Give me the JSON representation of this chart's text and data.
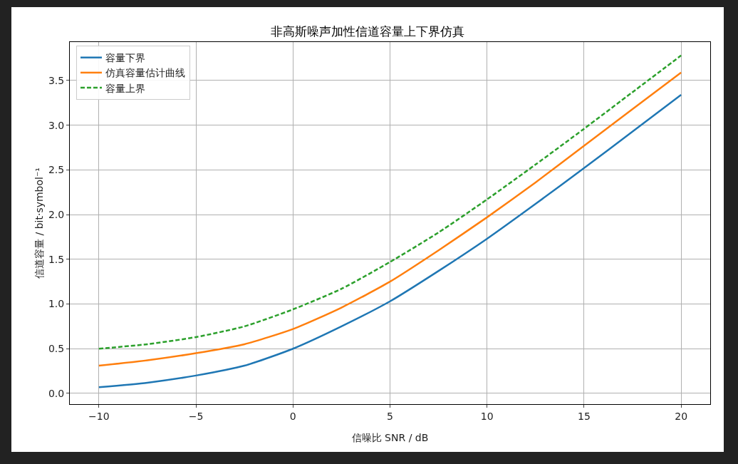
{
  "chart_data": {
    "type": "line",
    "title": "非高斯噪声加性信道容量上下界仿真",
    "xlabel": "信噪比 SNR / dB",
    "ylabel": "信道容量 / bit·symbol⁻¹",
    "x": [
      -10,
      -7.5,
      -5,
      -2.5,
      0,
      2.5,
      5,
      7.5,
      10,
      12.5,
      15,
      17.5,
      20
    ],
    "series": [
      {
        "name": "容量下界",
        "color": "#1f77b4",
        "line_style": "solid",
        "values": [
          0.07,
          0.12,
          0.2,
          0.31,
          0.5,
          0.75,
          1.03,
          1.37,
          1.73,
          2.12,
          2.52,
          2.93,
          3.34
        ]
      },
      {
        "name": "仿真容量估计曲线",
        "color": "#ff7f0e",
        "line_style": "solid",
        "values": [
          0.31,
          0.37,
          0.45,
          0.55,
          0.72,
          0.96,
          1.25,
          1.6,
          1.97,
          2.36,
          2.77,
          3.18,
          3.59
        ]
      },
      {
        "name": "容量上界",
        "color": "#2ca02c",
        "line_style": "dashed",
        "values": [
          0.5,
          0.55,
          0.63,
          0.75,
          0.94,
          1.17,
          1.47,
          1.8,
          2.17,
          2.56,
          2.96,
          3.37,
          3.78
        ]
      }
    ],
    "xlim": [
      -11.5,
      21.5
    ],
    "xticks": [
      {
        "value": -10,
        "label": "−10"
      },
      {
        "value": -5,
        "label": "−5"
      },
      0,
      5,
      10,
      15,
      20
    ],
    "ylim": [
      -0.12,
      3.93
    ],
    "yticks": [
      {
        "value": 0,
        "label": "0.0"
      },
      0.5,
      {
        "value": 1,
        "label": "1.0"
      },
      1.5,
      {
        "value": 2,
        "label": "2.0"
      },
      2.5,
      {
        "value": 3,
        "label": "3.0"
      },
      3.5
    ],
    "grid": true,
    "legend": "top left",
    "marker": "none"
  }
}
